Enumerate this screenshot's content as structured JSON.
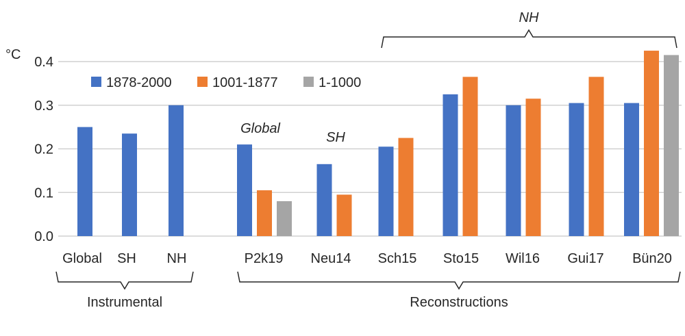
{
  "chart_data": {
    "type": "bar",
    "ylabel": "°C",
    "ylim": [
      0,
      0.4
    ],
    "yticks": [
      "0.0",
      "0.1",
      "0.2",
      "0.3",
      "0.4"
    ],
    "grid": true,
    "legend_placement": "top-left",
    "categories": [
      "Global",
      "SH",
      "NH",
      "P2k19",
      "Neu14",
      "Sch15",
      "Sto15",
      "Wil16",
      "Gui17",
      "Bün20"
    ],
    "series": [
      {
        "name": "1878-2000",
        "color": "#4472c4",
        "values": [
          0.25,
          0.235,
          0.3,
          0.21,
          0.165,
          0.205,
          0.325,
          0.3,
          0.305,
          0.305
        ]
      },
      {
        "name": "1001-1877",
        "color": "#ed7d31",
        "values": [
          null,
          null,
          null,
          0.105,
          0.095,
          0.225,
          0.365,
          0.315,
          0.365,
          0.425
        ]
      },
      {
        "name": "1-1000",
        "color": "#a5a5a5",
        "values": [
          null,
          null,
          null,
          0.08,
          null,
          null,
          null,
          null,
          null,
          0.415
        ]
      }
    ],
    "annotations": {
      "global": "Global",
      "sh": "SH",
      "nh": "NH"
    },
    "groups": {
      "instrumental": "Instrumental",
      "reconstructions": "Reconstructions"
    }
  }
}
